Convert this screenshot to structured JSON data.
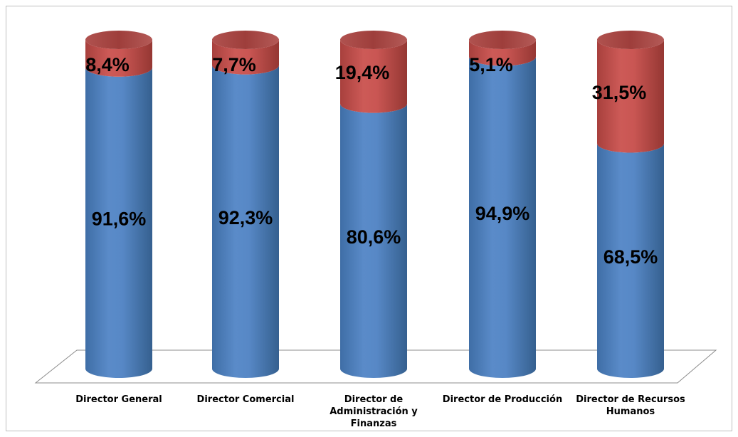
{
  "chart_data": {
    "type": "bar",
    "stacked": true,
    "style": "3d-cylinder",
    "percent_stacked": true,
    "categories": [
      [
        "Director General"
      ],
      [
        "Director Comercial"
      ],
      [
        "Director de",
        "Administración y",
        "Finanzas"
      ],
      [
        "Director de Producción"
      ],
      [
        "Director de Recursos",
        "Humanos"
      ]
    ],
    "series": [
      {
        "color": "#4f81bd",
        "values": [
          91.6,
          92.3,
          80.6,
          94.9,
          68.5
        ],
        "labels": [
          "91,6%",
          "92,3%",
          "80,6%",
          "94,9%",
          "68,5%"
        ]
      },
      {
        "color": "#c0504d",
        "values": [
          8.4,
          7.7,
          19.4,
          5.1,
          31.5
        ],
        "labels": [
          "8,4%",
          "7,7%",
          "19,4%",
          "5,1%",
          "31,5%"
        ]
      }
    ],
    "ylim": [
      0,
      100
    ],
    "grid": false,
    "legend": "none",
    "title": "",
    "xlabel": "",
    "ylabel": ""
  }
}
